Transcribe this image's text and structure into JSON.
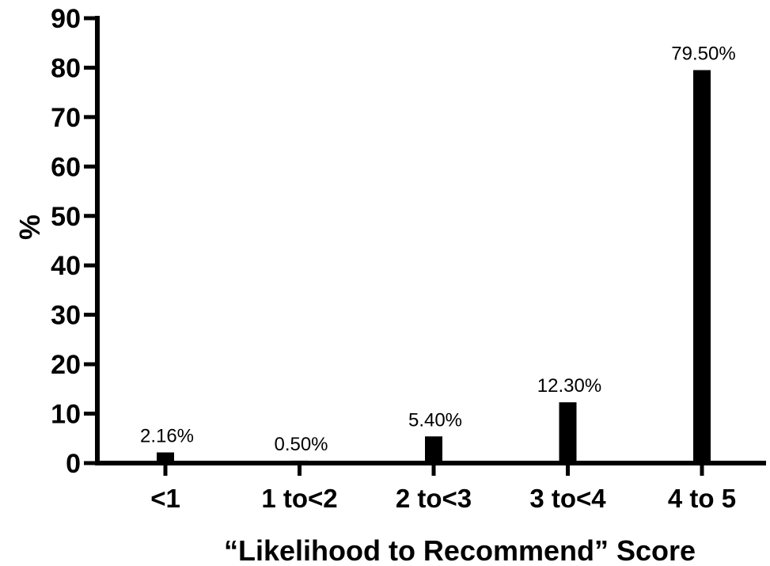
{
  "chart_data": {
    "type": "bar",
    "title": "",
    "xlabel": "“Likelihood to Recommend” Score",
    "ylabel": "%",
    "ylim": [
      0,
      90
    ],
    "yticks": [
      "0",
      "10",
      "20",
      "30",
      "40",
      "50",
      "60",
      "70",
      "80",
      "90"
    ],
    "grid": false,
    "categories": [
      "<1",
      "1 to<2",
      "2 to<3",
      "3 to<4",
      "4 to 5"
    ],
    "values": [
      2.16,
      0.5,
      5.4,
      12.3,
      79.5
    ],
    "data_labels": [
      "2.16%",
      "0.50%",
      "5.40%",
      "12.30%",
      "79.50%"
    ],
    "colors": {
      "bar": "#000000",
      "axis": "#000000",
      "background": "#ffffff"
    }
  }
}
